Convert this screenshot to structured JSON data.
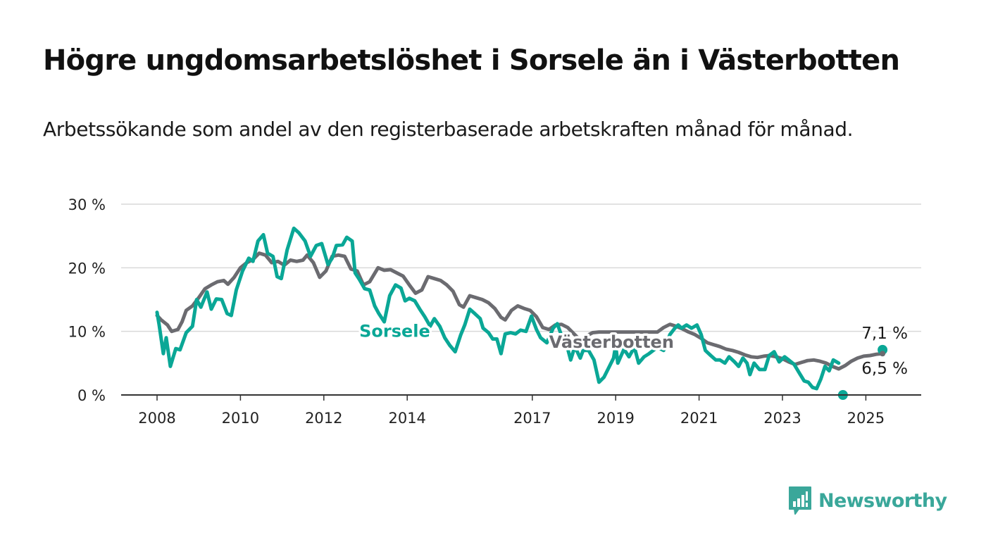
{
  "title": "Högre ungdomsarbetslöshet i Sorsele än i Västerbotten",
  "subtitle": "Arbetssökande som andel av den registerbaserade arbetskraften månad för månad.",
  "brand": {
    "name": "Newsworthy",
    "icon": "bar-chart-speech-bubble-icon",
    "color": "#3aa79a"
  },
  "chart_data": {
    "type": "line",
    "xlabel": "",
    "ylabel": "",
    "ylim": [
      0,
      30
    ],
    "xlim": [
      2008.0,
      2027.15
    ],
    "grid": true,
    "y_ticks": [
      {
        "value": 0,
        "label": "0 %"
      },
      {
        "value": 10,
        "label": "10 %"
      },
      {
        "value": 20,
        "label": "20 %"
      },
      {
        "value": 30,
        "label": "30 %"
      }
    ],
    "x_ticks": [
      {
        "value": 2008.0,
        "label": "2008"
      },
      {
        "value": 2010.0,
        "label": "2010"
      },
      {
        "value": 2012.0,
        "label": "2012"
      },
      {
        "value": 2014.0,
        "label": "2014"
      },
      {
        "value": 2017.0,
        "label": "2017"
      },
      {
        "value": 2019.0,
        "label": "2019"
      },
      {
        "value": 2021.0,
        "label": "2021"
      },
      {
        "value": 2023.0,
        "label": "2023"
      },
      {
        "value": 2025.0,
        "label": "2025"
      }
    ],
    "series": [
      {
        "name": "Västerbotten",
        "color": "#6b6b70",
        "end_label": "6,5 %",
        "points": [
          [
            2008.0,
            12.5
          ],
          [
            2008.1,
            11.8
          ],
          [
            2008.25,
            11.0
          ],
          [
            2008.35,
            10.0
          ],
          [
            2008.5,
            10.3
          ],
          [
            2008.6,
            11.5
          ],
          [
            2008.7,
            13.3
          ],
          [
            2008.85,
            14.0
          ],
          [
            2009.0,
            15.3
          ],
          [
            2009.15,
            16.7
          ],
          [
            2009.3,
            17.3
          ],
          [
            2009.45,
            17.8
          ],
          [
            2009.6,
            18.0
          ],
          [
            2009.7,
            17.4
          ],
          [
            2009.85,
            18.5
          ],
          [
            2010.0,
            20.0
          ],
          [
            2010.15,
            20.8
          ],
          [
            2010.3,
            21.3
          ],
          [
            2010.45,
            22.3
          ],
          [
            2010.6,
            22.0
          ],
          [
            2010.75,
            20.8
          ],
          [
            2010.9,
            21.0
          ],
          [
            2011.05,
            20.4
          ],
          [
            2011.2,
            21.2
          ],
          [
            2011.35,
            21.0
          ],
          [
            2011.5,
            21.2
          ],
          [
            2011.6,
            22.0
          ],
          [
            2011.75,
            20.8
          ],
          [
            2011.9,
            18.5
          ],
          [
            2012.05,
            19.5
          ],
          [
            2012.2,
            21.8
          ],
          [
            2012.35,
            22.0
          ],
          [
            2012.5,
            21.8
          ],
          [
            2012.65,
            19.8
          ],
          [
            2012.8,
            19.5
          ],
          [
            2012.95,
            17.3
          ],
          [
            2013.1,
            17.8
          ],
          [
            2013.3,
            20.0
          ],
          [
            2013.45,
            19.6
          ],
          [
            2013.6,
            19.7
          ],
          [
            2013.75,
            19.2
          ],
          [
            2013.9,
            18.7
          ],
          [
            2014.05,
            17.3
          ],
          [
            2014.2,
            16.0
          ],
          [
            2014.35,
            16.5
          ],
          [
            2014.5,
            18.6
          ],
          [
            2014.65,
            18.3
          ],
          [
            2014.8,
            18.0
          ],
          [
            2014.95,
            17.3
          ],
          [
            2015.1,
            16.3
          ],
          [
            2015.25,
            14.2
          ],
          [
            2015.35,
            13.8
          ],
          [
            2015.5,
            15.6
          ],
          [
            2015.65,
            15.3
          ],
          [
            2015.8,
            15.0
          ],
          [
            2015.95,
            14.5
          ],
          [
            2016.1,
            13.6
          ],
          [
            2016.25,
            12.2
          ],
          [
            2016.35,
            11.8
          ],
          [
            2016.5,
            13.3
          ],
          [
            2016.65,
            14.0
          ],
          [
            2016.8,
            13.6
          ],
          [
            2016.95,
            13.3
          ],
          [
            2017.1,
            12.3
          ],
          [
            2017.25,
            10.6
          ],
          [
            2017.4,
            10.3
          ],
          [
            2017.55,
            11.0
          ],
          [
            2017.7,
            11.1
          ],
          [
            2017.85,
            10.6
          ],
          [
            2018.0,
            9.6
          ],
          [
            2018.15,
            8.6
          ],
          [
            2018.3,
            9.3
          ],
          [
            2018.45,
            9.8
          ],
          [
            2018.6,
            9.9
          ],
          [
            2020.0,
            9.9
          ],
          [
            2020.15,
            10.6
          ],
          [
            2020.3,
            11.1
          ],
          [
            2020.45,
            10.8
          ],
          [
            2020.6,
            10.4
          ],
          [
            2020.75,
            9.9
          ],
          [
            2020.9,
            9.5
          ],
          [
            2021.05,
            8.9
          ],
          [
            2021.2,
            8.2
          ],
          [
            2021.35,
            7.9
          ],
          [
            2021.5,
            7.6
          ],
          [
            2021.65,
            7.2
          ],
          [
            2021.8,
            7.0
          ],
          [
            2021.95,
            6.7
          ],
          [
            2022.1,
            6.3
          ],
          [
            2022.25,
            6.0
          ],
          [
            2022.4,
            5.9
          ],
          [
            2022.55,
            6.1
          ],
          [
            2022.7,
            6.2
          ],
          [
            2022.85,
            6.0
          ],
          [
            2023.0,
            5.7
          ],
          [
            2023.15,
            5.2
          ],
          [
            2023.3,
            4.8
          ],
          [
            2023.45,
            5.1
          ],
          [
            2023.6,
            5.4
          ],
          [
            2023.75,
            5.5
          ],
          [
            2023.9,
            5.3
          ],
          [
            2024.05,
            5.0
          ],
          [
            2024.2,
            4.5
          ],
          [
            2024.35,
            4.1
          ],
          [
            2024.5,
            4.6
          ],
          [
            2024.65,
            5.3
          ],
          [
            2024.8,
            5.8
          ],
          [
            2024.95,
            6.1
          ],
          [
            2025.1,
            6.2
          ],
          [
            2025.25,
            6.4
          ],
          [
            2025.4,
            6.5
          ]
        ]
      },
      {
        "name": "Sorsele",
        "color": "#0aa796",
        "end_label": "7,1 %",
        "points": [
          [
            2008.0,
            13.0
          ],
          [
            2008.05,
            11.0
          ],
          [
            2008.15,
            6.5
          ],
          [
            2008.22,
            9.0
          ],
          [
            2008.32,
            4.5
          ],
          [
            2008.45,
            7.3
          ],
          [
            2008.55,
            7.1
          ],
          [
            2008.7,
            9.8
          ],
          [
            2008.85,
            10.8
          ],
          [
            2008.95,
            15.0
          ],
          [
            2009.05,
            13.8
          ],
          [
            2009.2,
            16.2
          ],
          [
            2009.3,
            13.5
          ],
          [
            2009.42,
            15.1
          ],
          [
            2009.55,
            15.0
          ],
          [
            2009.68,
            12.8
          ],
          [
            2009.78,
            12.5
          ],
          [
            2009.9,
            16.5
          ],
          [
            2010.05,
            19.5
          ],
          [
            2010.2,
            21.5
          ],
          [
            2010.3,
            21.0
          ],
          [
            2010.42,
            24.2
          ],
          [
            2010.55,
            25.2
          ],
          [
            2010.65,
            22.3
          ],
          [
            2010.78,
            21.8
          ],
          [
            2010.88,
            18.6
          ],
          [
            2010.98,
            18.3
          ],
          [
            2011.12,
            22.8
          ],
          [
            2011.28,
            26.2
          ],
          [
            2011.4,
            25.5
          ],
          [
            2011.55,
            24.2
          ],
          [
            2011.68,
            21.8
          ],
          [
            2011.82,
            23.5
          ],
          [
            2011.95,
            23.8
          ],
          [
            2012.1,
            20.5
          ],
          [
            2012.2,
            21.5
          ],
          [
            2012.3,
            23.5
          ],
          [
            2012.45,
            23.6
          ],
          [
            2012.55,
            24.8
          ],
          [
            2012.68,
            24.2
          ],
          [
            2012.75,
            19.2
          ],
          [
            2012.85,
            18.2
          ],
          [
            2012.98,
            16.7
          ],
          [
            2013.1,
            16.5
          ],
          [
            2013.22,
            14.0
          ],
          [
            2013.32,
            12.8
          ],
          [
            2013.45,
            11.5
          ],
          [
            2013.58,
            15.6
          ],
          [
            2013.72,
            17.3
          ],
          [
            2013.85,
            16.8
          ],
          [
            2013.95,
            14.8
          ],
          [
            2014.05,
            15.2
          ],
          [
            2014.18,
            14.8
          ],
          [
            2014.3,
            13.5
          ],
          [
            2014.42,
            12.3
          ],
          [
            2014.55,
            10.8
          ],
          [
            2014.65,
            12.0
          ],
          [
            2014.78,
            10.8
          ],
          [
            2014.9,
            9.0
          ],
          [
            2015.02,
            7.8
          ],
          [
            2015.15,
            6.8
          ],
          [
            2015.28,
            9.4
          ],
          [
            2015.38,
            11.0
          ],
          [
            2015.5,
            13.5
          ],
          [
            2015.62,
            12.8
          ],
          [
            2015.75,
            12.0
          ],
          [
            2015.82,
            10.5
          ],
          [
            2015.95,
            9.8
          ],
          [
            2016.05,
            8.8
          ],
          [
            2016.15,
            8.8
          ],
          [
            2016.25,
            6.5
          ],
          [
            2016.35,
            9.6
          ],
          [
            2016.48,
            9.8
          ],
          [
            2016.6,
            9.6
          ],
          [
            2016.72,
            10.2
          ],
          [
            2016.85,
            10.0
          ],
          [
            2016.98,
            12.4
          ],
          [
            2017.1,
            10.3
          ],
          [
            2017.2,
            9.0
          ],
          [
            2017.35,
            8.2
          ],
          [
            2017.5,
            10.5
          ],
          [
            2017.6,
            11.2
          ],
          [
            2017.72,
            9.0
          ],
          [
            2017.82,
            8.0
          ],
          [
            2017.92,
            5.5
          ],
          [
            2018.02,
            7.6
          ],
          [
            2018.15,
            5.8
          ],
          [
            2018.22,
            7.0
          ],
          [
            2018.35,
            7.0
          ],
          [
            2018.48,
            5.5
          ],
          [
            2018.6,
            2.0
          ],
          [
            2018.72,
            2.8
          ],
          [
            2018.85,
            4.5
          ],
          [
            2018.95,
            5.8
          ],
          [
            2019.0,
            7.8
          ],
          [
            2019.05,
            5.0
          ],
          [
            2019.2,
            7.2
          ],
          [
            2019.32,
            6.0
          ],
          [
            2019.45,
            7.5
          ],
          [
            2019.55,
            5.0
          ],
          [
            2019.68,
            6.0
          ],
          [
            2019.8,
            6.5
          ],
          [
            2020.0,
            7.5
          ],
          [
            2020.15,
            7.0
          ],
          [
            2020.3,
            9.5
          ],
          [
            2020.42,
            10.5
          ],
          [
            2020.5,
            11.0
          ],
          [
            2020.58,
            10.5
          ],
          [
            2020.7,
            11.0
          ],
          [
            2020.82,
            10.5
          ],
          [
            2020.95,
            11.0
          ],
          [
            2021.05,
            9.5
          ],
          [
            2021.15,
            7.0
          ],
          [
            2021.28,
            6.2
          ],
          [
            2021.4,
            5.5
          ],
          [
            2021.5,
            5.5
          ],
          [
            2021.62,
            5.0
          ],
          [
            2021.72,
            6.0
          ],
          [
            2021.85,
            5.2
          ],
          [
            2021.95,
            4.5
          ],
          [
            2022.05,
            5.8
          ],
          [
            2022.15,
            5.0
          ],
          [
            2022.22,
            3.2
          ],
          [
            2022.32,
            5.0
          ],
          [
            2022.45,
            4.0
          ],
          [
            2022.58,
            4.0
          ],
          [
            2022.68,
            6.2
          ],
          [
            2022.8,
            6.8
          ],
          [
            2022.92,
            5.2
          ],
          [
            2023.05,
            6.0
          ],
          [
            2023.15,
            5.5
          ],
          [
            2023.28,
            4.8
          ],
          [
            2023.4,
            3.5
          ],
          [
            2023.52,
            2.2
          ],
          [
            2023.62,
            2.0
          ],
          [
            2023.72,
            1.2
          ],
          [
            2023.82,
            1.0
          ],
          [
            2023.92,
            2.5
          ],
          [
            2024.02,
            4.5
          ],
          [
            2024.12,
            3.8
          ],
          [
            2024.22,
            5.5
          ],
          [
            2024.35,
            5.0
          ]
        ],
        "extra_points": [
          [
            2024.45,
            0.0
          ],
          [
            2025.4,
            7.1
          ]
        ]
      }
    ],
    "annotations": [
      {
        "text": "Sorsele",
        "series": "Sorsele",
        "x": 2013.7,
        "y": 10.0
      },
      {
        "text": "Västerbotten",
        "series": "Västerbotten",
        "x": 2018.9,
        "y": 8.3
      }
    ]
  }
}
